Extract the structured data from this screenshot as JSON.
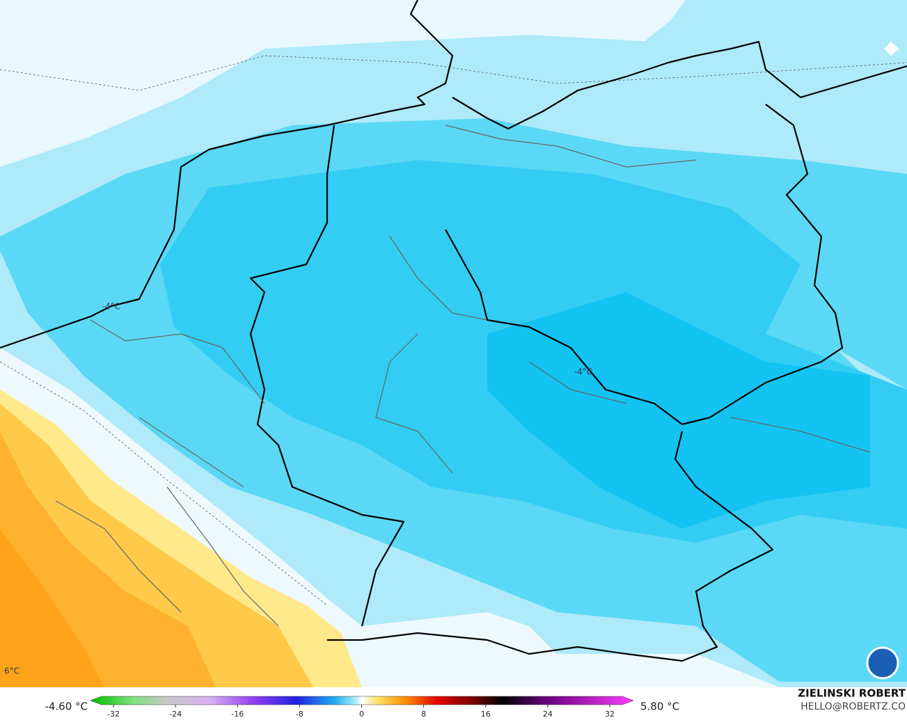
{
  "map": {
    "labels": [
      "-4°C",
      "-4°C",
      "6°C"
    ]
  },
  "colorbar": {
    "min_label": "-4.60 °C",
    "max_label": "5.80 °C",
    "ticks": [
      -32,
      -24,
      -16,
      -8,
      0,
      8,
      16,
      24,
      32
    ]
  },
  "credit": {
    "name": "ZIELINSKI ROBERT",
    "email": "HELLO@ROBERTZ.CO"
  }
}
